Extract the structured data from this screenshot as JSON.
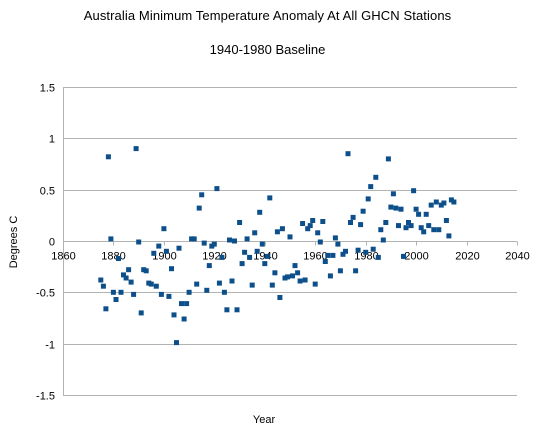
{
  "chart_data": {
    "type": "scatter",
    "title": "Australia Minimum Temperature Anomaly At All GHCN Stations",
    "subtitle": "1940-1980 Baseline",
    "xlabel": "Year",
    "ylabel": "Degrees C",
    "xlim": [
      1860,
      2040
    ],
    "ylim": [
      -1.5,
      1.5
    ],
    "x_ticks": [
      1860,
      1880,
      1900,
      1920,
      1940,
      1960,
      1980,
      2000,
      2020,
      2040
    ],
    "y_ticks": [
      1.5,
      1,
      0.5,
      0,
      -0.5,
      -1,
      -1.5
    ],
    "y_tick_labels": [
      "1.5",
      "1",
      "0.5",
      "0",
      "-0.5",
      "-1",
      "-1.5"
    ],
    "x_axis_at_y": 0,
    "grid": "horizontal",
    "legend": "none",
    "colors": {
      "marker": "#0d4f8b",
      "grid": "#b3b3b3",
      "axis": "#b3b3b3"
    },
    "series": [
      {
        "points": [
          [
            1875,
            -0.38
          ],
          [
            1876,
            -0.44
          ],
          [
            1877,
            -0.66
          ],
          [
            1878,
            0.82
          ],
          [
            1879,
            0.02
          ],
          [
            1880,
            -0.5
          ],
          [
            1881,
            -0.57
          ],
          [
            1882,
            -0.17
          ],
          [
            1883,
            -0.5
          ],
          [
            1884,
            -0.33
          ],
          [
            1885,
            -0.36
          ],
          [
            1886,
            -0.28
          ],
          [
            1887,
            -0.4
          ],
          [
            1888,
            -0.52
          ],
          [
            1889,
            0.9
          ],
          [
            1890,
            -0.01
          ],
          [
            1891,
            -0.7
          ],
          [
            1892,
            -0.28
          ],
          [
            1893,
            -0.29
          ],
          [
            1894,
            -0.41
          ],
          [
            1895,
            -0.42
          ],
          [
            1896,
            -0.12
          ],
          [
            1897,
            -0.44
          ],
          [
            1898,
            -0.05
          ],
          [
            1899,
            -0.52
          ],
          [
            1900,
            0.12
          ],
          [
            1901,
            -0.1
          ],
          [
            1902,
            -0.54
          ],
          [
            1903,
            -0.27
          ],
          [
            1904,
            -0.72
          ],
          [
            1905,
            -0.99
          ],
          [
            1906,
            -0.07
          ],
          [
            1907,
            -0.61
          ],
          [
            1908,
            -0.76
          ],
          [
            1909,
            -0.61
          ],
          [
            1910,
            -0.5
          ],
          [
            1911,
            0.02
          ],
          [
            1912,
            0.02
          ],
          [
            1913,
            -0.42
          ],
          [
            1914,
            0.32
          ],
          [
            1915,
            0.45
          ],
          [
            1916,
            -0.02
          ],
          [
            1917,
            -0.48
          ],
          [
            1918,
            -0.24
          ],
          [
            1919,
            -0.05
          ],
          [
            1920,
            -0.03
          ],
          [
            1921,
            0.51
          ],
          [
            1922,
            -0.41
          ],
          [
            1923,
            -0.16
          ],
          [
            1924,
            -0.5
          ],
          [
            1925,
            -0.67
          ],
          [
            1926,
            0.01
          ],
          [
            1927,
            -0.39
          ],
          [
            1928,
            0.0
          ],
          [
            1929,
            -0.67
          ],
          [
            1930,
            0.18
          ],
          [
            1931,
            -0.22
          ],
          [
            1932,
            -0.11
          ],
          [
            1933,
            0.02
          ],
          [
            1934,
            -0.16
          ],
          [
            1935,
            -0.43
          ],
          [
            1936,
            0.08
          ],
          [
            1937,
            -0.1
          ],
          [
            1938,
            0.28
          ],
          [
            1939,
            -0.03
          ],
          [
            1940,
            -0.22
          ],
          [
            1941,
            -0.15
          ],
          [
            1942,
            0.42
          ],
          [
            1943,
            -0.43
          ],
          [
            1944,
            -0.31
          ],
          [
            1945,
            0.09
          ],
          [
            1946,
            -0.55
          ],
          [
            1947,
            0.12
          ],
          [
            1948,
            -0.36
          ],
          [
            1949,
            -0.35
          ],
          [
            1950,
            0.04
          ],
          [
            1951,
            -0.34
          ],
          [
            1952,
            -0.24
          ],
          [
            1953,
            -0.31
          ],
          [
            1954,
            -0.39
          ],
          [
            1955,
            0.17
          ],
          [
            1956,
            -0.38
          ],
          [
            1957,
            0.12
          ],
          [
            1958,
            0.15
          ],
          [
            1959,
            0.2
          ],
          [
            1960,
            -0.42
          ],
          [
            1961,
            0.08
          ],
          [
            1962,
            -0.01
          ],
          [
            1963,
            0.19
          ],
          [
            1964,
            -0.2
          ],
          [
            1965,
            -0.14
          ],
          [
            1966,
            -0.34
          ],
          [
            1967,
            -0.14
          ],
          [
            1968,
            0.03
          ],
          [
            1969,
            -0.03
          ],
          [
            1970,
            -0.29
          ],
          [
            1971,
            -0.13
          ],
          [
            1972,
            -0.1
          ],
          [
            1973,
            0.85
          ],
          [
            1974,
            0.18
          ],
          [
            1975,
            0.23
          ],
          [
            1976,
            -0.29
          ],
          [
            1977,
            -0.09
          ],
          [
            1978,
            0.16
          ],
          [
            1979,
            0.29
          ],
          [
            1980,
            -0.11
          ],
          [
            1981,
            0.41
          ],
          [
            1982,
            0.53
          ],
          [
            1983,
            -0.08
          ],
          [
            1984,
            0.62
          ],
          [
            1985,
            -0.16
          ],
          [
            1986,
            0.11
          ],
          [
            1987,
            0.01
          ],
          [
            1988,
            0.18
          ],
          [
            1989,
            0.8
          ],
          [
            1990,
            0.33
          ],
          [
            1991,
            0.46
          ],
          [
            1992,
            0.32
          ],
          [
            1993,
            0.15
          ],
          [
            1994,
            0.31
          ],
          [
            1995,
            -0.15
          ],
          [
            1996,
            0.13
          ],
          [
            1997,
            0.18
          ],
          [
            1998,
            0.15
          ],
          [
            1999,
            0.49
          ],
          [
            2000,
            0.31
          ],
          [
            2001,
            0.26
          ],
          [
            2002,
            0.13
          ],
          [
            2003,
            0.09
          ],
          [
            2004,
            0.26
          ],
          [
            2005,
            0.15
          ],
          [
            2006,
            0.35
          ],
          [
            2007,
            0.11
          ],
          [
            2008,
            0.38
          ],
          [
            2009,
            0.11
          ],
          [
            2010,
            0.35
          ],
          [
            2011,
            0.37
          ],
          [
            2012,
            0.2
          ],
          [
            2013,
            0.05
          ],
          [
            2014,
            0.4
          ],
          [
            2015,
            0.38
          ]
        ]
      }
    ]
  }
}
